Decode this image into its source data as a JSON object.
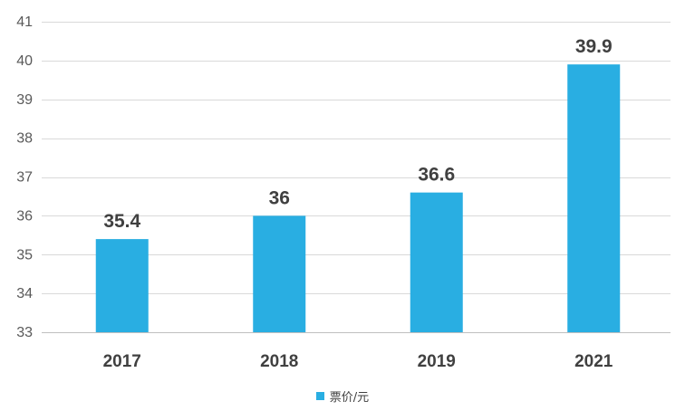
{
  "chart_data": {
    "type": "bar",
    "categories": [
      "2017",
      "2018",
      "2019",
      "2021"
    ],
    "series": [
      {
        "name": "票价/元",
        "values": [
          35.4,
          36,
          36.6,
          39.9
        ],
        "labels": [
          "35.4",
          "36",
          "36.6",
          "39.9"
        ],
        "color": "#29AEE2"
      }
    ],
    "title": "",
    "xlabel": "",
    "ylabel": "",
    "ylim": [
      33,
      41
    ],
    "yticks": [
      33,
      34,
      35,
      36,
      37,
      38,
      39,
      40,
      41
    ],
    "grid": true,
    "legend": "bottom"
  }
}
